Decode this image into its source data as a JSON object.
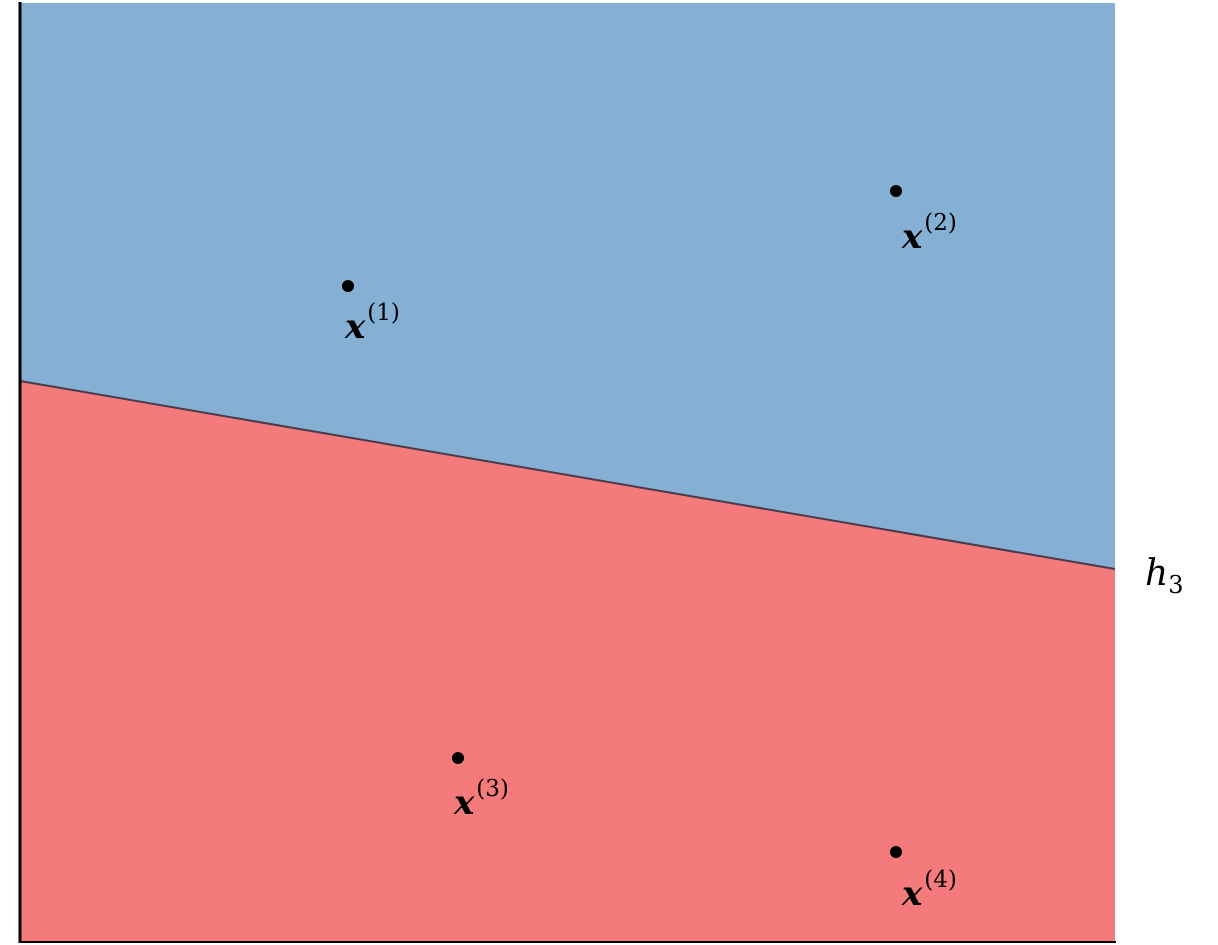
{
  "colors": {
    "upper_region": "#86afd4",
    "lower_region": "#f47a7c",
    "boundary": "#4a3a4a",
    "point": "#000000",
    "border": "#000000"
  },
  "boundary_label": {
    "main": "h",
    "sub": "3"
  },
  "points": [
    {
      "name": "x",
      "sup": "(1)"
    },
    {
      "name": "x",
      "sup": "(2)"
    },
    {
      "name": "x",
      "sup": "(3)"
    },
    {
      "name": "x",
      "sup": "(4)"
    }
  ]
}
